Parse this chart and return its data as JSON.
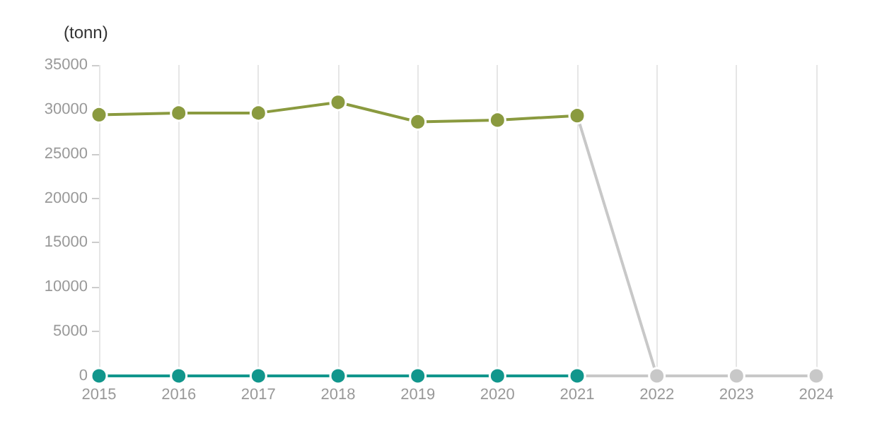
{
  "chart_data": {
    "type": "line",
    "ylabel": "(tonn)",
    "series": [
      {
        "color": "#8a9a3f",
        "x": [
          2015,
          2016,
          2017,
          2018,
          2019,
          2020,
          2021
        ],
        "values": [
          29400,
          29600,
          29600,
          30800,
          28600,
          28800,
          29300
        ],
        "marker": "circle"
      },
      {
        "color": "#c8c8c8",
        "x": [
          2021,
          2022
        ],
        "values": [
          29300,
          0
        ]
      },
      {
        "color": "#c8c8c8",
        "x": [
          2021,
          2022,
          2023,
          2024
        ],
        "values": [
          0,
          0,
          0,
          0
        ],
        "marker": "circle"
      },
      {
        "color": "#11968c",
        "x": [
          2015,
          2016,
          2017,
          2018,
          2019,
          2020,
          2021
        ],
        "values": [
          0,
          0,
          0,
          0,
          0,
          0,
          0
        ],
        "marker": "circle"
      }
    ],
    "xlim": [
      2015,
      2024
    ],
    "xticks": [
      2015,
      2016,
      2017,
      2018,
      2019,
      2020,
      2021,
      2022,
      2023,
      2024
    ],
    "ylim": [
      0,
      35000
    ],
    "yticks": [
      0,
      5000,
      10000,
      15000,
      20000,
      25000,
      30000,
      35000
    ],
    "grid": "x"
  }
}
